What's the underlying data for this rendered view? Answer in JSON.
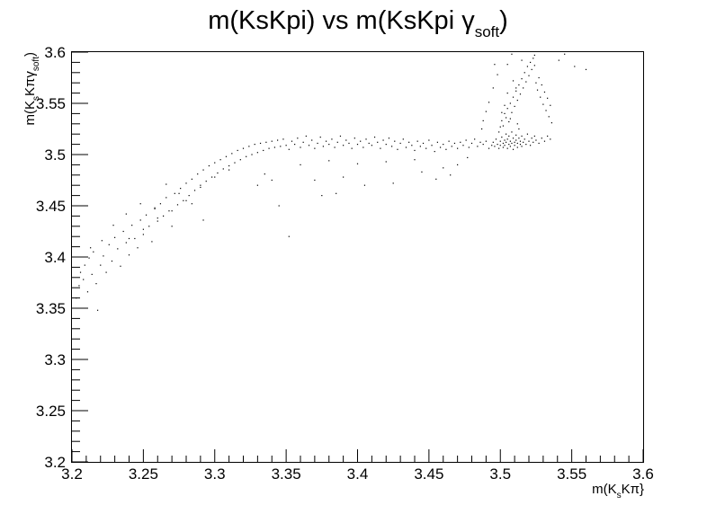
{
  "chart_data": {
    "type": "scatter",
    "title": {
      "main": "m(KsKpi) vs m(KsKpi  ",
      "symbol": "γ",
      "sub": "soft",
      "close": ")"
    },
    "xlabel": {
      "pre": "m(K",
      "sub": "s",
      "post": "Kπ}"
    },
    "ylabel": {
      "pre": "m(K",
      "sub1": "s",
      "mid": "Kπγ",
      "sub2": "soft",
      "post": ")"
    },
    "xlim": [
      3.2,
      3.6
    ],
    "ylim": [
      3.2,
      3.6
    ],
    "x_ticks": [
      "3.2",
      "3.25",
      "3.3",
      "3.35",
      "3.4",
      "3.45",
      "3.5",
      "3.55",
      "3.6"
    ],
    "y_ticks": [
      "3.2",
      "3.25",
      "3.3",
      "3.35",
      "3.4",
      "3.45",
      "3.5",
      "3.55",
      "3.6"
    ],
    "marker_color": "#000000",
    "grid": false,
    "legend": "none",
    "points": [
      [
        3.203,
        3.36
      ],
      [
        3.205,
        3.372
      ],
      [
        3.206,
        3.385
      ],
      [
        3.208,
        3.378
      ],
      [
        3.209,
        3.392
      ],
      [
        3.211,
        3.366
      ],
      [
        3.212,
        3.399
      ],
      [
        3.214,
        3.383
      ],
      [
        3.215,
        3.405
      ],
      [
        3.217,
        3.374
      ],
      [
        3.218,
        3.348
      ],
      [
        3.22,
        3.392
      ],
      [
        3.222,
        3.401
      ],
      [
        3.224,
        3.385
      ],
      [
        3.226,
        3.412
      ],
      [
        3.228,
        3.396
      ],
      [
        3.23,
        3.419
      ],
      [
        3.232,
        3.408
      ],
      [
        3.234,
        3.391
      ],
      [
        3.236,
        3.425
      ],
      [
        3.238,
        3.414
      ],
      [
        3.24,
        3.402
      ],
      [
        3.242,
        3.431
      ],
      [
        3.244,
        3.418
      ],
      [
        3.246,
        3.409
      ],
      [
        3.248,
        3.436
      ],
      [
        3.25,
        3.422
      ],
      [
        3.252,
        3.441
      ],
      [
        3.254,
        3.43
      ],
      [
        3.256,
        3.415
      ],
      [
        3.258,
        3.447
      ],
      [
        3.26,
        3.435
      ],
      [
        3.262,
        3.452
      ],
      [
        3.264,
        3.44
      ],
      [
        3.266,
        3.458
      ],
      [
        3.268,
        3.445
      ],
      [
        3.27,
        3.43
      ],
      [
        3.272,
        3.462
      ],
      [
        3.274,
        3.451
      ],
      [
        3.276,
        3.467
      ],
      [
        3.278,
        3.455
      ],
      [
        3.28,
        3.472
      ],
      [
        3.282,
        3.46
      ],
      [
        3.284,
        3.476
      ],
      [
        3.286,
        3.465
      ],
      [
        3.288,
        3.481
      ],
      [
        3.29,
        3.47
      ],
      [
        3.292,
        3.485
      ],
      [
        3.294,
        3.474
      ],
      [
        3.296,
        3.489
      ],
      [
        3.298,
        3.478
      ],
      [
        3.3,
        3.492
      ],
      [
        3.302,
        3.482
      ],
      [
        3.304,
        3.495
      ],
      [
        3.306,
        3.486
      ],
      [
        3.308,
        3.498
      ],
      [
        3.31,
        3.489
      ],
      [
        3.312,
        3.501
      ],
      [
        3.314,
        3.492
      ],
      [
        3.316,
        3.504
      ],
      [
        3.318,
        3.495
      ],
      [
        3.32,
        3.506
      ],
      [
        3.322,
        3.498
      ],
      [
        3.324,
        3.508
      ],
      [
        3.326,
        3.5
      ],
      [
        3.328,
        3.51
      ],
      [
        3.33,
        3.502
      ],
      [
        3.332,
        3.511
      ],
      [
        3.334,
        3.504
      ],
      [
        3.336,
        3.512
      ],
      [
        3.338,
        3.506
      ],
      [
        3.34,
        3.513
      ],
      [
        3.342,
        3.507
      ],
      [
        3.344,
        3.514
      ],
      [
        3.346,
        3.508
      ],
      [
        3.348,
        3.515
      ],
      [
        3.35,
        3.509
      ],
      [
        3.352,
        3.505
      ],
      [
        3.354,
        3.513
      ],
      [
        3.356,
        3.51
      ],
      [
        3.358,
        3.516
      ],
      [
        3.36,
        3.507
      ],
      [
        3.362,
        3.512
      ],
      [
        3.364,
        3.518
      ],
      [
        3.366,
        3.509
      ],
      [
        3.368,
        3.514
      ],
      [
        3.37,
        3.506
      ],
      [
        3.372,
        3.511
      ],
      [
        3.374,
        3.517
      ],
      [
        3.376,
        3.508
      ],
      [
        3.378,
        3.513
      ],
      [
        3.38,
        3.51
      ],
      [
        3.382,
        3.515
      ],
      [
        3.384,
        3.507
      ],
      [
        3.386,
        3.512
      ],
      [
        3.388,
        3.518
      ],
      [
        3.39,
        3.509
      ],
      [
        3.392,
        3.514
      ],
      [
        3.394,
        3.511
      ],
      [
        3.396,
        3.506
      ],
      [
        3.398,
        3.516
      ],
      [
        3.4,
        3.51
      ],
      [
        3.402,
        3.513
      ],
      [
        3.404,
        3.507
      ],
      [
        3.406,
        3.515
      ],
      [
        3.408,
        3.511
      ],
      [
        3.41,
        3.509
      ],
      [
        3.412,
        3.517
      ],
      [
        3.414,
        3.512
      ],
      [
        3.416,
        3.506
      ],
      [
        3.418,
        3.514
      ],
      [
        3.42,
        3.51
      ],
      [
        3.422,
        3.516
      ],
      [
        3.424,
        3.508
      ],
      [
        3.426,
        3.513
      ],
      [
        3.428,
        3.505
      ],
      [
        3.43,
        3.511
      ],
      [
        3.432,
        3.515
      ],
      [
        3.434,
        3.507
      ],
      [
        3.436,
        3.512
      ],
      [
        3.438,
        3.509
      ],
      [
        3.44,
        3.504
      ],
      [
        3.442,
        3.513
      ],
      [
        3.444,
        3.508
      ],
      [
        3.446,
        3.511
      ],
      [
        3.448,
        3.506
      ],
      [
        3.45,
        3.514
      ],
      [
        3.452,
        3.509
      ],
      [
        3.454,
        3.503
      ],
      [
        3.456,
        3.512
      ],
      [
        3.458,
        3.507
      ],
      [
        3.46,
        3.51
      ],
      [
        3.462,
        3.505
      ],
      [
        3.464,
        3.513
      ],
      [
        3.466,
        3.508
      ],
      [
        3.468,
        3.511
      ],
      [
        3.47,
        3.506
      ],
      [
        3.472,
        3.512
      ],
      [
        3.474,
        3.509
      ],
      [
        3.476,
        3.514
      ],
      [
        3.478,
        3.507
      ],
      [
        3.48,
        3.511
      ],
      [
        3.482,
        3.515
      ],
      [
        3.484,
        3.508
      ],
      [
        3.486,
        3.512
      ],
      [
        3.488,
        3.51
      ],
      [
        3.49,
        3.513
      ],
      [
        3.492,
        3.506
      ],
      [
        3.494,
        3.509
      ],
      [
        3.495,
        3.512
      ],
      [
        3.496,
        3.508
      ],
      [
        3.497,
        3.515
      ],
      [
        3.498,
        3.51
      ],
      [
        3.499,
        3.506
      ],
      [
        3.5,
        3.513
      ],
      [
        3.5,
        3.509
      ],
      [
        3.501,
        3.517
      ],
      [
        3.502,
        3.511
      ],
      [
        3.502,
        3.507
      ],
      [
        3.503,
        3.514
      ],
      [
        3.503,
        3.509
      ],
      [
        3.504,
        3.52
      ],
      [
        3.504,
        3.512
      ],
      [
        3.505,
        3.506
      ],
      [
        3.505,
        3.515
      ],
      [
        3.506,
        3.51
      ],
      [
        3.506,
        3.518
      ],
      [
        3.507,
        3.508
      ],
      [
        3.507,
        3.513
      ],
      [
        3.508,
        3.522
      ],
      [
        3.508,
        3.511
      ],
      [
        3.509,
        3.505
      ],
      [
        3.509,
        3.516
      ],
      [
        3.51,
        3.512
      ],
      [
        3.51,
        3.509
      ],
      [
        3.511,
        3.519
      ],
      [
        3.511,
        3.514
      ],
      [
        3.512,
        3.507
      ],
      [
        3.512,
        3.511
      ],
      [
        3.513,
        3.516
      ],
      [
        3.513,
        3.525
      ],
      [
        3.514,
        3.51
      ],
      [
        3.514,
        3.513
      ],
      [
        3.515,
        3.508
      ],
      [
        3.515,
        3.518
      ],
      [
        3.516,
        3.512
      ],
      [
        3.517,
        3.515
      ],
      [
        3.518,
        3.51
      ],
      [
        3.519,
        3.52
      ],
      [
        3.52,
        3.513
      ],
      [
        3.521,
        3.509
      ],
      [
        3.522,
        3.516
      ],
      [
        3.523,
        3.512
      ],
      [
        3.524,
        3.518
      ],
      [
        3.525,
        3.514
      ],
      [
        3.527,
        3.511
      ],
      [
        3.529,
        3.516
      ],
      [
        3.531,
        3.513
      ],
      [
        3.533,
        3.518
      ],
      [
        3.535,
        3.515
      ],
      [
        3.499,
        3.522
      ],
      [
        3.5,
        3.527
      ],
      [
        3.501,
        3.533
      ],
      [
        3.502,
        3.528
      ],
      [
        3.503,
        3.54
      ],
      [
        3.504,
        3.536
      ],
      [
        3.505,
        3.545
      ],
      [
        3.506,
        3.532
      ],
      [
        3.507,
        3.55
      ],
      [
        3.508,
        3.541
      ],
      [
        3.509,
        3.556
      ],
      [
        3.51,
        3.547
      ],
      [
        3.511,
        3.562
      ],
      [
        3.512,
        3.553
      ],
      [
        3.513,
        3.568
      ],
      [
        3.514,
        3.559
      ],
      [
        3.515,
        3.574
      ],
      [
        3.516,
        3.565
      ],
      [
        3.517,
        3.58
      ],
      [
        3.518,
        3.571
      ],
      [
        3.519,
        3.586
      ],
      [
        3.52,
        3.577
      ],
      [
        3.521,
        3.59
      ],
      [
        3.522,
        3.583
      ],
      [
        3.523,
        3.594
      ],
      [
        3.524,
        3.587
      ],
      [
        3.525,
        3.57
      ],
      [
        3.526,
        3.563
      ],
      [
        3.527,
        3.575
      ],
      [
        3.528,
        3.556
      ],
      [
        3.529,
        3.568
      ],
      [
        3.53,
        3.549
      ],
      [
        3.531,
        3.561
      ],
      [
        3.532,
        3.543
      ],
      [
        3.533,
        3.555
      ],
      [
        3.534,
        3.537
      ],
      [
        3.535,
        3.548
      ],
      [
        3.536,
        3.531
      ],
      [
        3.524,
        3.597
      ],
      [
        3.515,
        3.592
      ],
      [
        3.505,
        3.588
      ],
      [
        3.498,
        3.578
      ],
      [
        3.495,
        3.565
      ],
      [
        3.492,
        3.551
      ],
      [
        3.49,
        3.542
      ],
      [
        3.488,
        3.533
      ],
      [
        3.487,
        3.525
      ],
      [
        3.545,
        3.598
      ],
      [
        3.552,
        3.586
      ],
      [
        3.56,
        3.583
      ],
      [
        3.541,
        3.592
      ],
      [
        3.508,
        3.598
      ],
      [
        3.496,
        3.588
      ],
      [
        3.509,
        3.572
      ],
      [
        3.511,
        3.565
      ],
      [
        3.505,
        3.56
      ],
      [
        3.503,
        3.548
      ],
      [
        3.501,
        3.541
      ],
      [
        3.507,
        3.535
      ],
      [
        3.512,
        3.53
      ],
      [
        3.335,
        3.481
      ],
      [
        3.36,
        3.49
      ],
      [
        3.38,
        3.494
      ],
      [
        3.4,
        3.491
      ],
      [
        3.42,
        3.493
      ],
      [
        3.44,
        3.495
      ],
      [
        3.46,
        3.487
      ],
      [
        3.465,
        3.48
      ],
      [
        3.47,
        3.49
      ],
      [
        3.477,
        3.497
      ],
      [
        3.33,
        3.47
      ],
      [
        3.34,
        3.475
      ],
      [
        3.31,
        3.485
      ],
      [
        3.3,
        3.478
      ],
      [
        3.29,
        3.468
      ],
      [
        3.28,
        3.455
      ],
      [
        3.27,
        3.445
      ],
      [
        3.26,
        3.438
      ],
      [
        3.25,
        3.427
      ],
      [
        3.24,
        3.418
      ],
      [
        3.352,
        3.42
      ],
      [
        3.37,
        3.475
      ],
      [
        3.375,
        3.46
      ],
      [
        3.385,
        3.462
      ],
      [
        3.39,
        3.478
      ],
      [
        3.405,
        3.47
      ],
      [
        3.425,
        3.472
      ],
      [
        3.445,
        3.483
      ],
      [
        3.455,
        3.476
      ],
      [
        3.345,
        3.45
      ],
      [
        3.292,
        3.436
      ],
      [
        3.284,
        3.452
      ],
      [
        3.275,
        3.462
      ],
      [
        3.266,
        3.471
      ],
      [
        3.258,
        3.448
      ],
      [
        3.248,
        3.452
      ],
      [
        3.238,
        3.442
      ],
      [
        3.229,
        3.431
      ],
      [
        3.221,
        3.416
      ],
      [
        3.213,
        3.409
      ]
    ]
  }
}
